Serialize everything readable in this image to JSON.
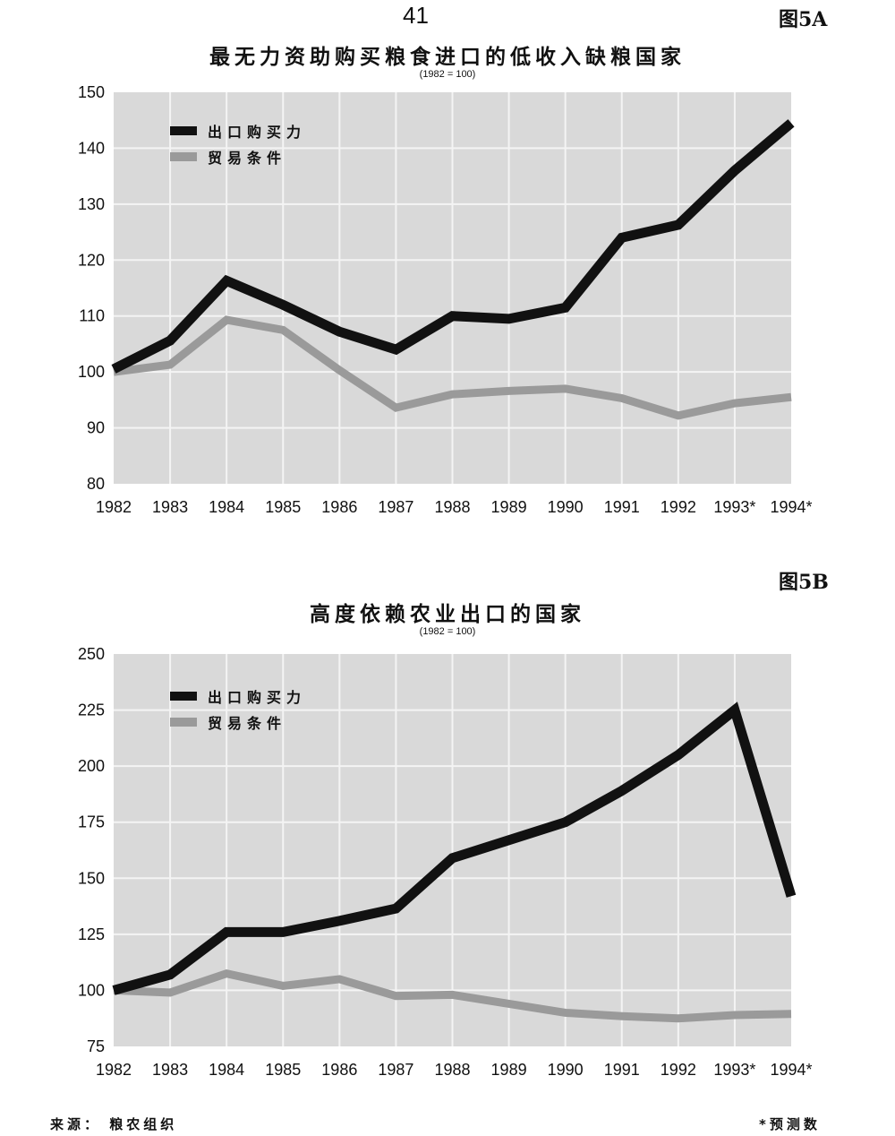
{
  "page_number": "41",
  "footer": {
    "source": "来源：  粮农组织",
    "note": "*预测数"
  },
  "chart_data": [
    {
      "figure_label": "图5A",
      "type": "line",
      "title": "最无力资助购买粮食进口的低收入缺粮国家",
      "subtitle": "(1982 = 100)",
      "categories": [
        "1982",
        "1983",
        "1984",
        "1985",
        "1986",
        "1987",
        "1988",
        "1989",
        "1990",
        "1991",
        "1992",
        "1993*",
        "1994*"
      ],
      "ylim": [
        80,
        150
      ],
      "yticks": [
        80,
        90,
        100,
        110,
        120,
        130,
        140,
        150
      ],
      "grid": true,
      "legend_position": "top-left",
      "series": [
        {
          "name": "出口购买力",
          "color": "#111111",
          "values": [
            100.5,
            105.6,
            116.3,
            112,
            107.2,
            104,
            110,
            109.5,
            111.5,
            124,
            126.3,
            136,
            144.5
          ]
        },
        {
          "name": "贸易条件",
          "color": "#9a9a9a",
          "values": [
            100,
            101.3,
            109.3,
            107.5,
            100.3,
            93.6,
            96,
            96.6,
            97,
            95.3,
            92.2,
            94.4,
            95.5
          ]
        }
      ]
    },
    {
      "figure_label": "图5B",
      "type": "line",
      "title": "高度依赖农业出口的国家",
      "subtitle": "(1982 = 100)",
      "categories": [
        "1982",
        "1983",
        "1984",
        "1985",
        "1986",
        "1987",
        "1988",
        "1989",
        "1990",
        "1991",
        "1992",
        "1993*",
        "1994*"
      ],
      "ylim": [
        75,
        250
      ],
      "yticks": [
        75,
        100,
        125,
        150,
        175,
        200,
        225,
        250
      ],
      "grid": true,
      "legend_position": "top-left",
      "series": [
        {
          "name": "出口购买力",
          "color": "#111111",
          "values": [
            100,
            107,
            126,
            126,
            131,
            136.5,
            159,
            167,
            175,
            189,
            205,
            225,
            142
          ]
        },
        {
          "name": "贸易条件",
          "color": "#9a9a9a",
          "values": [
            100,
            99,
            107.5,
            102,
            105,
            97.5,
            98,
            94,
            90,
            88.5,
            87.5,
            89,
            89.5
          ]
        }
      ]
    }
  ]
}
